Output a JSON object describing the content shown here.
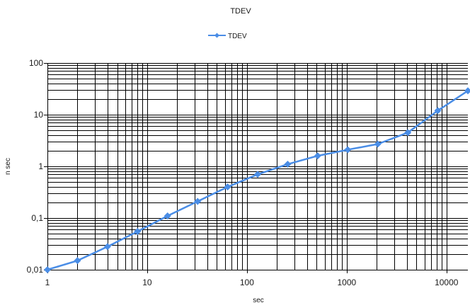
{
  "chart_data": {
    "type": "line",
    "title": "TDEV",
    "xlabel": "sec",
    "ylabel": "n sec",
    "xscale": "log",
    "yscale": "log",
    "xlim": [
      1,
      16384
    ],
    "ylim": [
      0.01,
      100
    ],
    "x_ticks": [
      "1",
      "10",
      "100",
      "1000",
      "10000"
    ],
    "y_ticks": [
      "0,01",
      "0,1",
      "1",
      "10",
      "100"
    ],
    "grid": true,
    "legend_position": "top-center",
    "series": [
      {
        "name": "TDEV",
        "color": "#4a8de6",
        "marker": "diamond",
        "x": [
          1,
          2,
          4,
          8,
          16,
          32,
          64,
          128,
          256,
          512,
          1024,
          2048,
          4096,
          8192,
          16384
        ],
        "y": [
          0.01,
          0.015,
          0.028,
          0.055,
          0.11,
          0.21,
          0.4,
          0.7,
          1.1,
          1.6,
          2.1,
          2.7,
          4.5,
          12,
          29
        ]
      }
    ]
  }
}
